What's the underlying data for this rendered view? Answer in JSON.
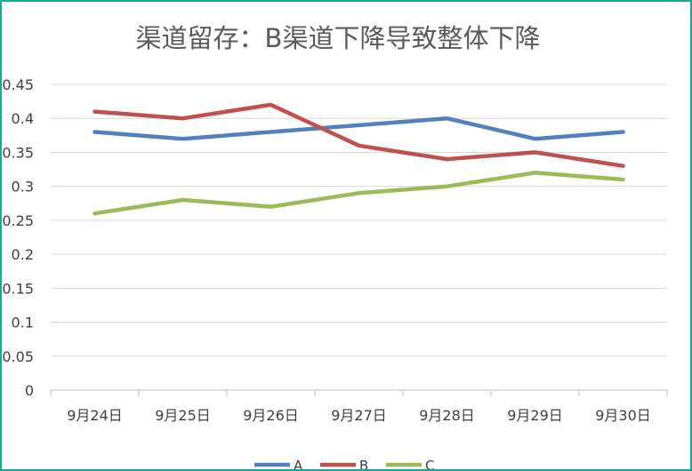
{
  "chart_data": {
    "type": "line",
    "title": "渠道留存：B渠道下降导致整体下降",
    "categories": [
      "9月24日",
      "9月25日",
      "9月26日",
      "9月27日",
      "9月28日",
      "9月29日",
      "9月30日"
    ],
    "y_ticks": [
      "0",
      "0.05",
      "0.1",
      "0.15",
      "0.2",
      "0.25",
      "0.3",
      "0.35",
      "0.4",
      "0.45"
    ],
    "ylim": [
      0,
      0.45
    ],
    "grid": true,
    "legend_position": "bottom",
    "series": [
      {
        "name": "A",
        "color": "#4f81bd",
        "values": [
          0.38,
          0.37,
          0.38,
          0.39,
          0.4,
          0.37,
          0.38
        ]
      },
      {
        "name": "B",
        "color": "#c0504d",
        "values": [
          0.41,
          0.4,
          0.42,
          0.36,
          0.34,
          0.35,
          0.33
        ]
      },
      {
        "name": "C",
        "color": "#9bbb59",
        "values": [
          0.26,
          0.28,
          0.27,
          0.29,
          0.3,
          0.32,
          0.31
        ]
      }
    ]
  }
}
